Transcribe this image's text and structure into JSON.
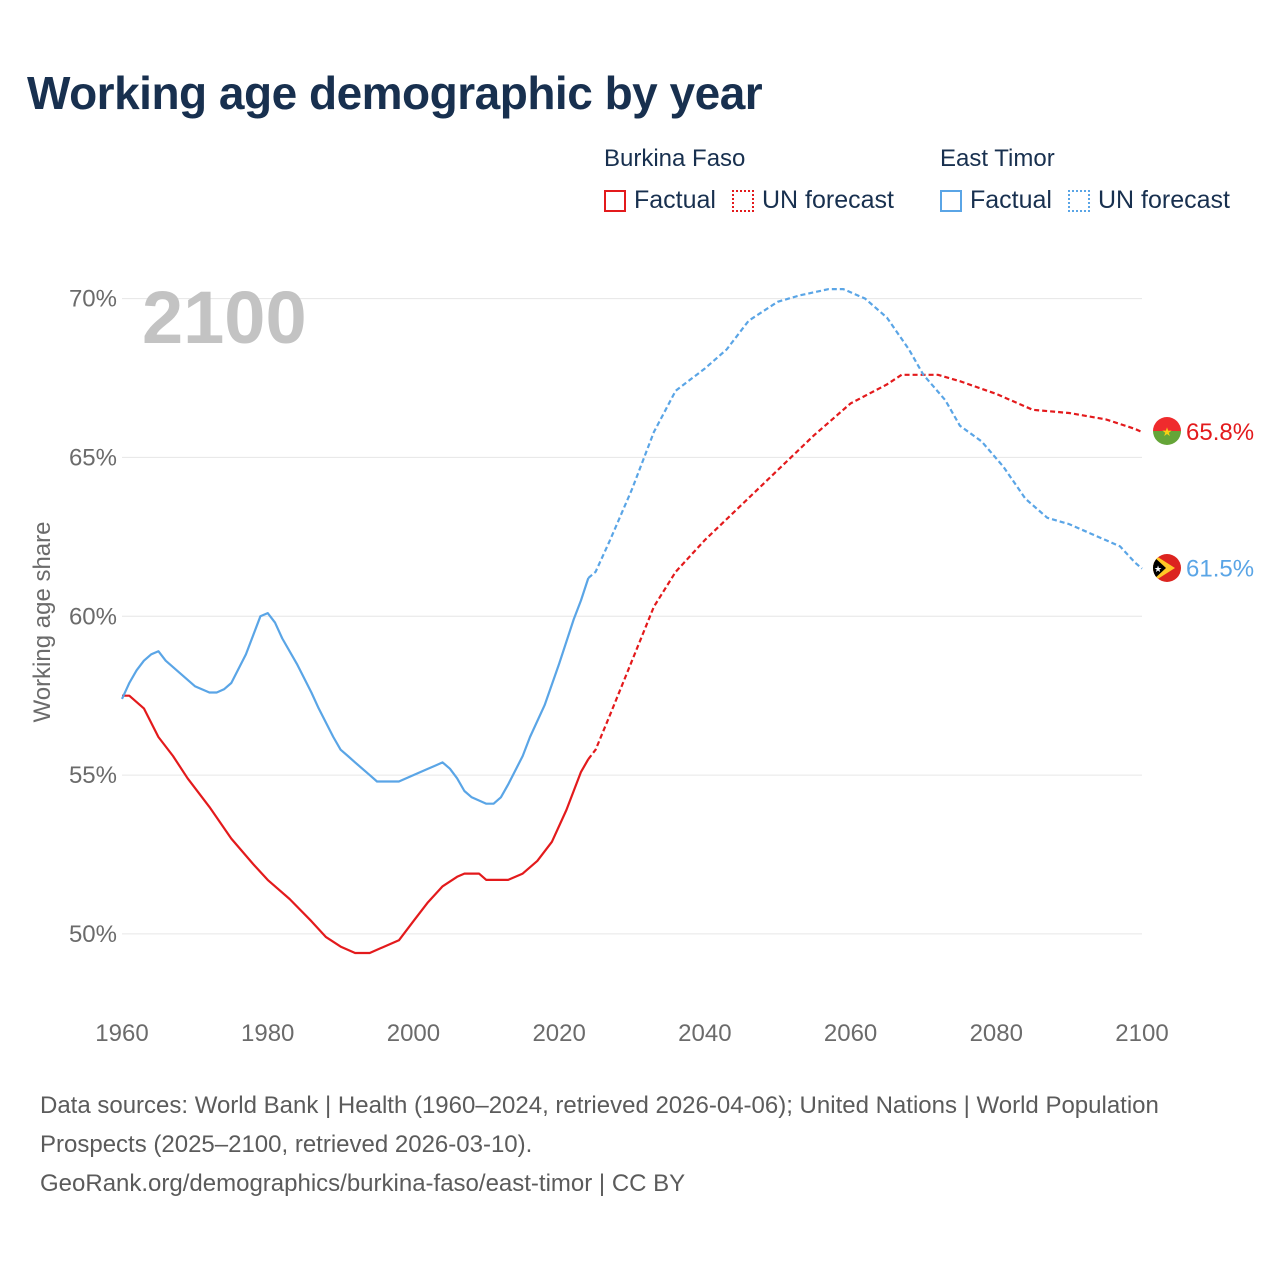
{
  "title": "Working age demographic by year",
  "legend": [
    {
      "group": "Burkina Faso",
      "items": [
        {
          "label": "Factual",
          "style": "solid",
          "color": "#e31a1c"
        },
        {
          "label": "UN forecast",
          "style": "dotted",
          "color": "#e31a1c"
        }
      ]
    },
    {
      "group": "East Timor",
      "items": [
        {
          "label": "Factual",
          "style": "solid",
          "color": "#5aa5e6"
        },
        {
          "label": "UN forecast",
          "style": "dotted",
          "color": "#5aa5e6"
        }
      ]
    }
  ],
  "footer": {
    "sources": "Data sources: World Bank | Health (1960–2024, retrieved 2026-04-06); United Nations | World Population Prospects (2025–2100, retrieved 2026-03-10).",
    "link": "GeoRank.org/demographics/burkina-faso/east-timor | CC BY"
  },
  "chart_data": {
    "type": "line",
    "title": "Working age demographic by year",
    "xlabel": "",
    "ylabel": "Working age share",
    "xlim": [
      1960,
      2100
    ],
    "ylim": [
      47.7,
      70.9
    ],
    "xticks": [
      1960,
      1980,
      2000,
      2020,
      2040,
      2060,
      2080,
      2100
    ],
    "xtick_labels": [
      "1960",
      "1980",
      "2000",
      "2020",
      "2040",
      "2060",
      "2080",
      "2100"
    ],
    "yticks": [
      50,
      55,
      60,
      65,
      70
    ],
    "ytick_labels": [
      "50%",
      "55%",
      "60%",
      "65%",
      "70%"
    ],
    "year_watermark": "2100",
    "grid": true,
    "factual_end_year": 2024,
    "series": [
      {
        "name": "Burkina Faso",
        "color": "#e31a1c",
        "end_label": "65.8%",
        "flag": "burkina-faso-flag",
        "points": [
          [
            1960,
            57.5
          ],
          [
            1961,
            57.5
          ],
          [
            1963,
            57.1
          ],
          [
            1965,
            56.2
          ],
          [
            1967,
            55.6
          ],
          [
            1969,
            54.9
          ],
          [
            1972,
            54.0
          ],
          [
            1975,
            53.0
          ],
          [
            1978,
            52.2
          ],
          [
            1980,
            51.7
          ],
          [
            1983,
            51.1
          ],
          [
            1986,
            50.4
          ],
          [
            1988,
            49.9
          ],
          [
            1990,
            49.6
          ],
          [
            1992,
            49.4
          ],
          [
            1994,
            49.4
          ],
          [
            1996,
            49.6
          ],
          [
            1998,
            49.8
          ],
          [
            2000,
            50.4
          ],
          [
            2002,
            51.0
          ],
          [
            2004,
            51.5
          ],
          [
            2006,
            51.8
          ],
          [
            2007,
            51.9
          ],
          [
            2009,
            51.9
          ],
          [
            2010,
            51.7
          ],
          [
            2013,
            51.7
          ],
          [
            2015,
            51.9
          ],
          [
            2017,
            52.3
          ],
          [
            2019,
            52.9
          ],
          [
            2021,
            53.9
          ],
          [
            2023,
            55.1
          ],
          [
            2024,
            55.5
          ],
          [
            2025,
            55.8
          ],
          [
            2027,
            56.9
          ],
          [
            2030,
            58.6
          ],
          [
            2033,
            60.3
          ],
          [
            2036,
            61.4
          ],
          [
            2040,
            62.4
          ],
          [
            2045,
            63.5
          ],
          [
            2050,
            64.6
          ],
          [
            2055,
            65.7
          ],
          [
            2060,
            66.7
          ],
          [
            2065,
            67.3
          ],
          [
            2067,
            67.6
          ],
          [
            2072,
            67.6
          ],
          [
            2075,
            67.4
          ],
          [
            2080,
            67.0
          ],
          [
            2085,
            66.5
          ],
          [
            2090,
            66.4
          ],
          [
            2095,
            66.2
          ],
          [
            2099,
            65.9
          ],
          [
            2100,
            65.8
          ]
        ]
      },
      {
        "name": "East Timor",
        "color": "#5aa5e6",
        "end_label": "61.5%",
        "flag": "east-timor-flag",
        "points": [
          [
            1960,
            57.4
          ],
          [
            1961,
            57.9
          ],
          [
            1962,
            58.3
          ],
          [
            1963,
            58.6
          ],
          [
            1964,
            58.8
          ],
          [
            1965,
            58.9
          ],
          [
            1966,
            58.6
          ],
          [
            1968,
            58.2
          ],
          [
            1970,
            57.8
          ],
          [
            1972,
            57.6
          ],
          [
            1973,
            57.6
          ],
          [
            1974,
            57.7
          ],
          [
            1975,
            57.9
          ],
          [
            1977,
            58.8
          ],
          [
            1979,
            60.0
          ],
          [
            1980,
            60.1
          ],
          [
            1981,
            59.8
          ],
          [
            1982,
            59.3
          ],
          [
            1984,
            58.5
          ],
          [
            1986,
            57.6
          ],
          [
            1987,
            57.1
          ],
          [
            1989,
            56.2
          ],
          [
            1990,
            55.8
          ],
          [
            1991,
            55.6
          ],
          [
            1992,
            55.4
          ],
          [
            1994,
            55.0
          ],
          [
            1995,
            54.8
          ],
          [
            1998,
            54.8
          ],
          [
            2000,
            55.0
          ],
          [
            2002,
            55.2
          ],
          [
            2003,
            55.3
          ],
          [
            2004,
            55.4
          ],
          [
            2005,
            55.2
          ],
          [
            2006,
            54.9
          ],
          [
            2007,
            54.5
          ],
          [
            2008,
            54.3
          ],
          [
            2010,
            54.1
          ],
          [
            2011,
            54.1
          ],
          [
            2012,
            54.3
          ],
          [
            2013,
            54.7
          ],
          [
            2015,
            55.6
          ],
          [
            2016,
            56.2
          ],
          [
            2018,
            57.2
          ],
          [
            2020,
            58.5
          ],
          [
            2022,
            59.9
          ],
          [
            2023,
            60.5
          ],
          [
            2024,
            61.2
          ],
          [
            2025,
            61.4
          ],
          [
            2027,
            62.4
          ],
          [
            2030,
            64.0
          ],
          [
            2033,
            65.8
          ],
          [
            2036,
            67.1
          ],
          [
            2040,
            67.8
          ],
          [
            2043,
            68.4
          ],
          [
            2046,
            69.3
          ],
          [
            2050,
            69.9
          ],
          [
            2053,
            70.1
          ],
          [
            2057,
            70.3
          ],
          [
            2059,
            70.3
          ],
          [
            2062,
            70.0
          ],
          [
            2065,
            69.4
          ],
          [
            2068,
            68.4
          ],
          [
            2070,
            67.6
          ],
          [
            2073,
            66.8
          ],
          [
            2075,
            66.0
          ],
          [
            2078,
            65.5
          ],
          [
            2081,
            64.7
          ],
          [
            2084,
            63.7
          ],
          [
            2087,
            63.1
          ],
          [
            2090,
            62.9
          ],
          [
            2093,
            62.6
          ],
          [
            2097,
            62.2
          ],
          [
            2099,
            61.7
          ],
          [
            2100,
            61.5
          ]
        ]
      }
    ]
  }
}
